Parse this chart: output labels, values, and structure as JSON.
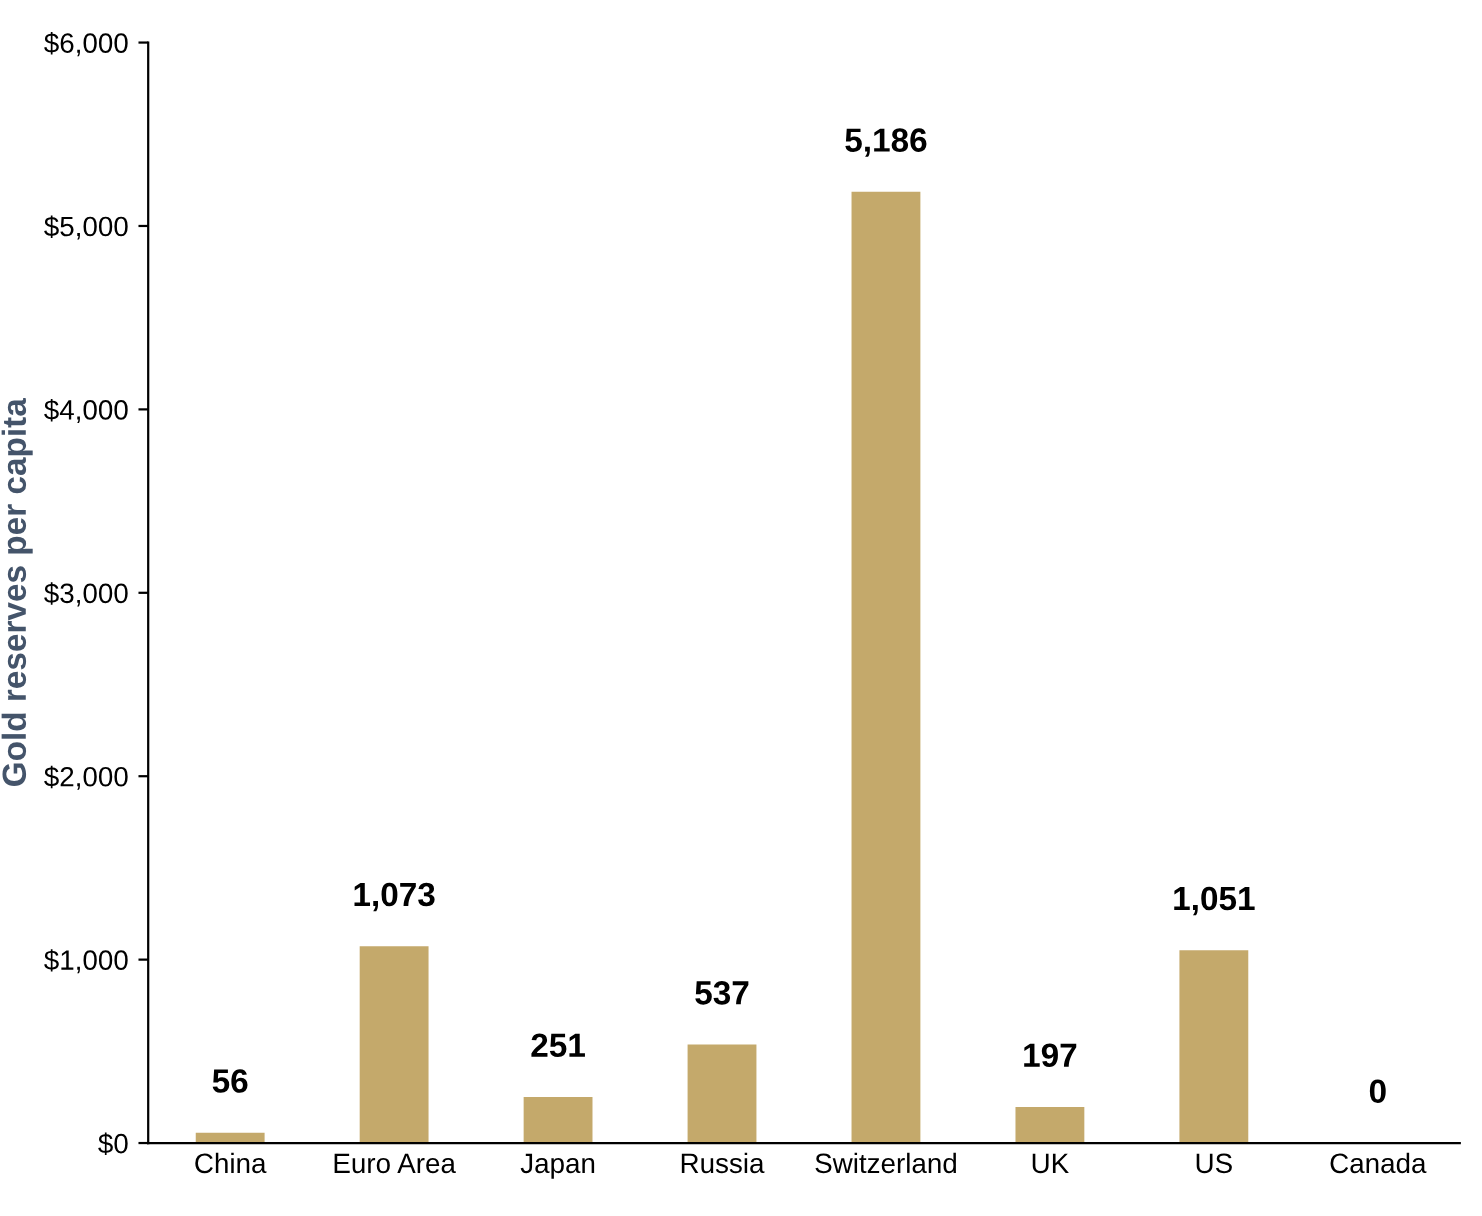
{
  "chart_data": {
    "type": "bar",
    "ylabel": "Gold reserves per capita",
    "categories": [
      "China",
      "Euro Area",
      "Japan",
      "Russia",
      "Switzerland",
      "UK",
      "US",
      "Canada"
    ],
    "values": [
      56,
      1073,
      251,
      537,
      5186,
      197,
      1051,
      0
    ],
    "value_labels": [
      "56",
      "1,073",
      "251",
      "537",
      "5,186",
      "197",
      "1,051",
      "0"
    ],
    "color": "#c4a96b",
    "ylim": [
      0,
      6000
    ],
    "yticks": [
      {
        "value": 0,
        "label": "$0"
      },
      {
        "value": 1000,
        "label": "$1,000"
      },
      {
        "value": 2000,
        "label": "$2,000"
      },
      {
        "value": 3000,
        "label": "$3,000"
      },
      {
        "value": 4000,
        "label": "$4,000"
      },
      {
        "value": 5000,
        "label": "$5,000"
      },
      {
        "value": 6000,
        "label": "$6,000"
      }
    ],
    "grid": false,
    "legend": false
  }
}
